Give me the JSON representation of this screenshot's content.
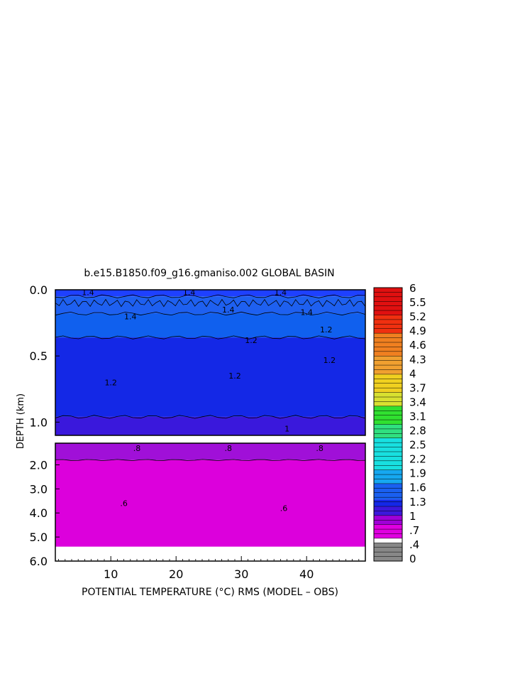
{
  "chart_data": {
    "type": "heatmap",
    "title": "b.e15.B1850.f09_g16.gmaniso.002 GLOBAL BASIN",
    "xlabel": "POTENTIAL TEMPERATURE (°C) RMS (MODEL – OBS)",
    "ylabel": "DEPTH (km)",
    "x_range": [
      1.5,
      49
    ],
    "x_ticks": [
      10,
      20,
      30,
      40
    ],
    "panels": [
      {
        "name": "upper",
        "depth_range": [
          0.0,
          1.1
        ],
        "y_ticks": [
          {
            "value": 0.0,
            "label": "0.0"
          },
          {
            "value": 0.5,
            "label": "0.5"
          },
          {
            "value": 1.0,
            "label": "1.0"
          }
        ]
      },
      {
        "name": "lower",
        "depth_range": [
          1.1,
          6.0
        ],
        "y_ticks": [
          {
            "value": 2.0,
            "label": "2.0"
          },
          {
            "value": 3.0,
            "label": "3.0"
          },
          {
            "value": 4.0,
            "label": "4.0"
          },
          {
            "value": 5.0,
            "label": "5.0"
          },
          {
            "value": 6.0,
            "label": "6.0"
          }
        ]
      }
    ],
    "regions": [
      {
        "panel": "upper",
        "depth": [
          0.0,
          0.05
        ],
        "value": 1.6,
        "color": "#1e40ff"
      },
      {
        "panel": "upper",
        "depth": [
          0.05,
          0.18
        ],
        "value": 1.5,
        "color": "#1e60f0"
      },
      {
        "panel": "upper",
        "depth": [
          0.18,
          0.36
        ],
        "value": 1.4,
        "color": "#1060ee"
      },
      {
        "panel": "upper",
        "depth": [
          0.36,
          0.96
        ],
        "value": 1.25,
        "color": "#1428e6"
      },
      {
        "panel": "upper",
        "depth": [
          0.96,
          1.1
        ],
        "value": 1.1,
        "color": "#3a18dc"
      },
      {
        "panel": "lower",
        "depth": [
          1.1,
          1.8
        ],
        "value": 0.85,
        "color": "#a010d8"
      },
      {
        "panel": "lower",
        "depth": [
          1.8,
          5.4
        ],
        "value": 0.7,
        "color": "#dc00dc"
      }
    ],
    "contour_labels": [
      {
        "panel": "upper",
        "x": 6.5,
        "depth": 0.02,
        "label": "1.4"
      },
      {
        "panel": "upper",
        "x": 22,
        "depth": 0.02,
        "label": "1.4"
      },
      {
        "panel": "upper",
        "x": 36,
        "depth": 0.02,
        "label": "1.4"
      },
      {
        "panel": "upper",
        "x": 13,
        "depth": 0.2,
        "label": "1.4"
      },
      {
        "panel": "upper",
        "x": 28,
        "depth": 0.15,
        "label": "1.4"
      },
      {
        "panel": "upper",
        "x": 40,
        "depth": 0.17,
        "label": "1.4"
      },
      {
        "panel": "upper",
        "x": 43,
        "depth": 0.3,
        "label": "1.2"
      },
      {
        "panel": "upper",
        "x": 31.5,
        "depth": 0.38,
        "label": "1.2"
      },
      {
        "panel": "upper",
        "x": 43.5,
        "depth": 0.53,
        "label": "1.2"
      },
      {
        "panel": "upper",
        "x": 10,
        "depth": 0.7,
        "label": "1.2"
      },
      {
        "panel": "upper",
        "x": 29,
        "depth": 0.65,
        "label": "1.2"
      },
      {
        "panel": "upper",
        "x": 37,
        "depth": 1.05,
        "label": "1"
      },
      {
        "panel": "lower",
        "x": 14,
        "depth": 1.3,
        "label": ".8"
      },
      {
        "panel": "lower",
        "x": 28,
        "depth": 1.3,
        "label": ".8"
      },
      {
        "panel": "lower",
        "x": 42,
        "depth": 1.3,
        "label": ".8"
      },
      {
        "panel": "lower",
        "x": 12,
        "depth": 3.6,
        "label": ".6"
      },
      {
        "panel": "lower",
        "x": 36.5,
        "depth": 3.8,
        "label": ".6"
      }
    ],
    "colorbar": {
      "range": [
        0,
        6
      ],
      "labels": [
        "6",
        "5.5",
        "5.2",
        "4.9",
        "4.6",
        "4.3",
        "4",
        "3.7",
        "3.4",
        "3.1",
        "2.8",
        "2.5",
        "2.2",
        "1.9",
        "1.6",
        "1.3",
        "1",
        ".7",
        ".4",
        "0"
      ],
      "bands": [
        {
          "from": 0.0,
          "to": 0.4,
          "color": "#888888"
        },
        {
          "from": 0.4,
          "to": 0.5,
          "color": "#ffffff"
        },
        {
          "from": 0.5,
          "to": 0.8,
          "color": "#e000e0"
        },
        {
          "from": 0.8,
          "to": 1.0,
          "color": "#a000d8"
        },
        {
          "from": 1.0,
          "to": 1.2,
          "color": "#3c18dc"
        },
        {
          "from": 1.2,
          "to": 1.35,
          "color": "#1428e8"
        },
        {
          "from": 1.35,
          "to": 1.7,
          "color": "#1a60f0"
        },
        {
          "from": 1.7,
          "to": 2.0,
          "color": "#16a8f0"
        },
        {
          "from": 2.0,
          "to": 2.7,
          "color": "#18e0e0"
        },
        {
          "from": 2.7,
          "to": 3.0,
          "color": "#30e080"
        },
        {
          "from": 3.0,
          "to": 3.4,
          "color": "#30e030"
        },
        {
          "from": 3.4,
          "to": 3.7,
          "color": "#d8e030"
        },
        {
          "from": 3.7,
          "to": 4.1,
          "color": "#f0d020"
        },
        {
          "from": 4.1,
          "to": 4.5,
          "color": "#f0a030"
        },
        {
          "from": 4.5,
          "to": 5.0,
          "color": "#f08020"
        },
        {
          "from": 5.0,
          "to": 5.4,
          "color": "#f03010"
        },
        {
          "from": 5.4,
          "to": 6.0,
          "color": "#e01010"
        }
      ]
    }
  }
}
